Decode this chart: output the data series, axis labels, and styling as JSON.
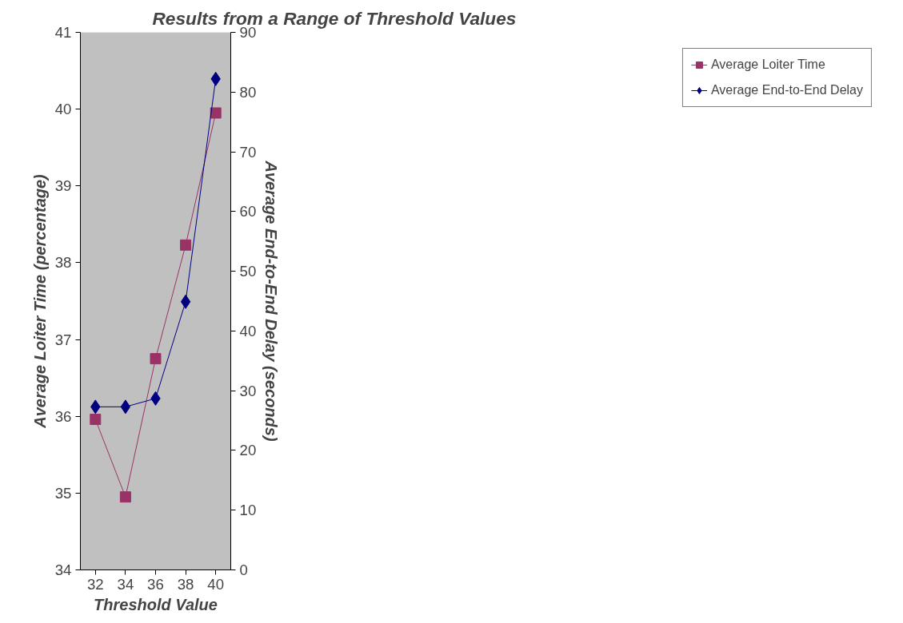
{
  "chart_data": {
    "type": "line",
    "title": "Results from a Range of Threshold Values",
    "xlabel": "Threshold Value",
    "ylabel": "Average Loiter Time (percentage)",
    "y2label": "Average End-to-End Delay (seconds)",
    "categories": [
      "32",
      "34",
      "36",
      "38",
      "40"
    ],
    "series": [
      {
        "name": "Average Loiter Time",
        "color": "#993366",
        "marker": "square",
        "values": [
          35.96,
          34.95,
          36.75,
          38.23,
          39.95
        ]
      },
      {
        "name": "Average End-to-End Delay",
        "color": "#000080",
        "marker": "diamond",
        "axis": "y2",
        "values": [
          27.3,
          27.3,
          28.7,
          44.9,
          82.2
        ]
      }
    ],
    "ylim": [
      34,
      41
    ],
    "yticks": [
      34,
      35,
      36,
      37,
      38,
      39,
      40,
      41
    ],
    "y2lim": [
      0,
      90
    ],
    "y2ticks": [
      0,
      10,
      20,
      30,
      40,
      50,
      60,
      70,
      80,
      90
    ],
    "grid": false,
    "legend": "right",
    "line_style": "solid"
  }
}
